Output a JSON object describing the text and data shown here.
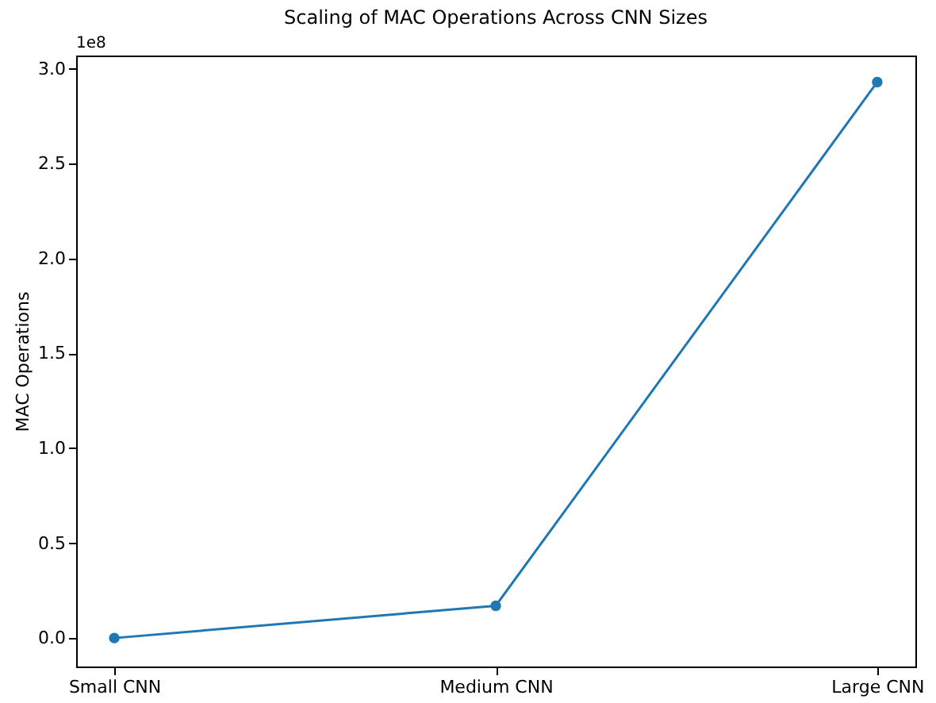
{
  "chart_data": {
    "type": "line",
    "title": "Scaling of MAC Operations Across CNN Sizes",
    "ylabel": "MAC Operations",
    "categories": [
      "Small CNN",
      "Medium CNN",
      "Large CNN"
    ],
    "series": [
      {
        "color": "#1f77b4",
        "values": [
          0.0,
          0.17,
          2.93
        ]
      }
    ],
    "ylim": [
      -0.15,
      3.07
    ],
    "yticks": [
      {
        "value": 0,
        "label": "0.0"
      },
      {
        "value": 0.5,
        "label": "0.5"
      },
      {
        "value": 1,
        "label": "1.0"
      },
      {
        "value": 1.5,
        "label": "1.5"
      },
      {
        "value": 2,
        "label": "2.0"
      },
      {
        "value": 2.5,
        "label": "2.5"
      },
      {
        "value": 3,
        "label": "3.0"
      }
    ],
    "annotations": [
      "1e8"
    ],
    "marker": "circle",
    "line_style": "solid",
    "grid": false
  }
}
